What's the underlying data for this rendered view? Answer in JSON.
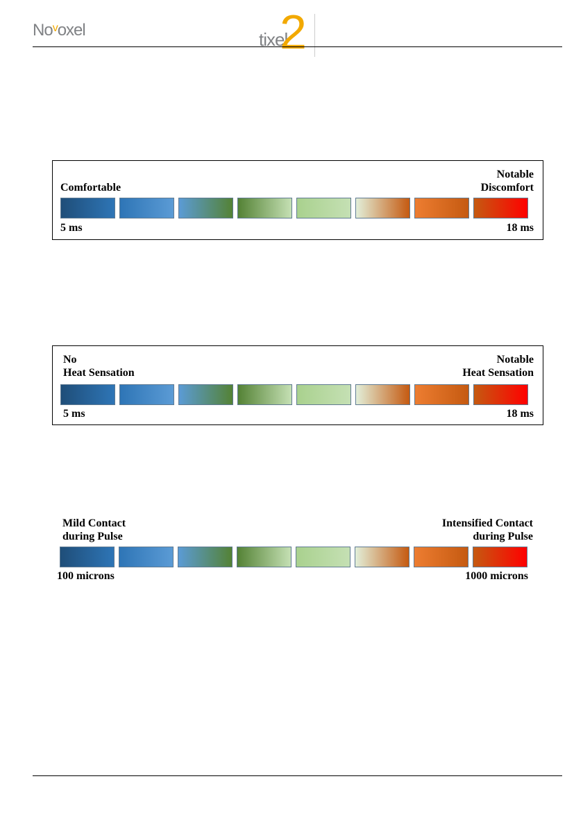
{
  "header": {
    "logo_left": "Novoxel",
    "logo_center": "tixel2"
  },
  "block_colors": [
    [
      "#1f4e79",
      "#2e75b6"
    ],
    [
      "#2e75b6",
      "#5b9bd5"
    ],
    [
      "#5b9bd5",
      "#548235"
    ],
    [
      "#548235",
      "#c5e0b4"
    ],
    [
      "#a9d18e",
      "#c5e0b4"
    ],
    [
      "#e2efd9",
      "#c55a11"
    ],
    [
      "#ed7d31",
      "#c55a11"
    ],
    [
      "#c55a11",
      "#ff0000"
    ]
  ],
  "scales": [
    {
      "left_label": "Comfortable",
      "right_label_1": "Notable",
      "right_label_2": "Discomfort",
      "min": "5 ms",
      "max": "18 ms"
    },
    {
      "left_label_1": "No",
      "left_label_2": "Heat Sensation",
      "right_label_1": "Notable",
      "right_label_2": "Heat Sensation",
      "min": "5 ms",
      "max": "18 ms"
    },
    {
      "left_label_1": "Mild Contact",
      "left_label_2": "during Pulse",
      "right_label_1": "Intensified Contact",
      "right_label_2": "during Pulse",
      "min": "100 microns",
      "max": "1000 microns"
    }
  ]
}
